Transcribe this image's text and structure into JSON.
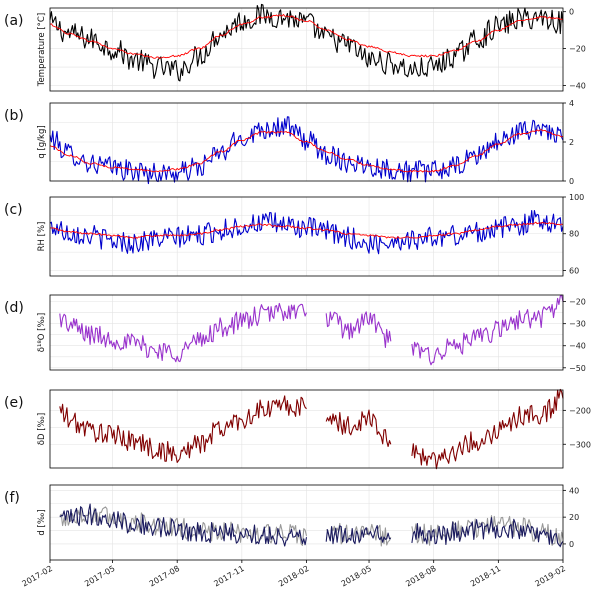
{
  "chart_data": {
    "type": "line",
    "x_axis": {
      "start": "2017-02-01",
      "end": "2019-02-01",
      "tick_labels": [
        "2017-02",
        "2017-05",
        "2017-08",
        "2017-11",
        "2018-02",
        "2018-05",
        "2018-08",
        "2018-11",
        "2019-02"
      ]
    },
    "panels": [
      {
        "id": "a",
        "label": "(a)",
        "ylabel": "Temperature [°C]",
        "ylim": [
          -43,
          2
        ],
        "yticks": [
          0,
          -20,
          -40
        ],
        "ytick_labels": [
          "0",
          "−20",
          "−40"
        ],
        "grid": true,
        "series": [
          {
            "color": "#000000",
            "style": "daily",
            "x": [
              "2017-02-01",
              "2017-03-01",
              "2017-04-01",
              "2017-05-01",
              "2017-06-01",
              "2017-07-01",
              "2017-08-01",
              "2017-09-01",
              "2017-10-01",
              "2017-11-01",
              "2017-12-01",
              "2018-01-01",
              "2018-02-01",
              "2018-03-01",
              "2018-04-01",
              "2018-05-01",
              "2018-06-01",
              "2018-07-01",
              "2018-08-01",
              "2018-09-01",
              "2018-10-01",
              "2018-11-01",
              "2018-12-01",
              "2019-01-01",
              "2019-02-01"
            ],
            "y": [
              -6,
              -12,
              -15,
              -20,
              -26,
              -30,
              -32,
              -24,
              -12,
              -5,
              -2,
              -3,
              -6,
              -14,
              -18,
              -26,
              -28,
              -32,
              -30,
              -24,
              -15,
              -8,
              -4,
              -3,
              -6
            ]
          },
          {
            "color": "#ff0000",
            "style": "smooth",
            "x": [
              "2017-02-01",
              "2017-03-01",
              "2017-04-01",
              "2017-05-01",
              "2017-06-01",
              "2017-07-01",
              "2017-08-01",
              "2017-09-01",
              "2017-10-01",
              "2017-11-01",
              "2017-12-01",
              "2018-01-01",
              "2018-02-01",
              "2018-03-01",
              "2018-04-01",
              "2018-05-01",
              "2018-06-01",
              "2018-07-01",
              "2018-08-01",
              "2018-09-01",
              "2018-10-01",
              "2018-11-01",
              "2018-12-01",
              "2019-01-01",
              "2019-02-01"
            ],
            "y": [
              -7,
              -12,
              -16,
              -20,
              -23,
              -25,
              -24,
              -20,
              -13,
              -7,
              -3,
              -2,
              -5,
              -10,
              -15,
              -19,
              -22,
              -24,
              -24,
              -21,
              -16,
              -10,
              -5,
              -3,
              -4
            ]
          }
        ]
      },
      {
        "id": "b",
        "label": "(b)",
        "ylabel": "q [g/kg]",
        "ylim": [
          0,
          4
        ],
        "yticks": [
          0,
          2,
          4
        ],
        "ytick_labels": [
          "0",
          "2",
          "4"
        ],
        "grid": true,
        "series": [
          {
            "color": "#0000cc",
            "style": "daily",
            "x": [
              "2017-02-01",
              "2017-03-01",
              "2017-04-01",
              "2017-05-01",
              "2017-06-01",
              "2017-07-01",
              "2017-08-01",
              "2017-09-01",
              "2017-10-01",
              "2017-11-01",
              "2017-12-01",
              "2018-01-01",
              "2018-02-01",
              "2018-03-01",
              "2018-04-01",
              "2018-05-01",
              "2018-06-01",
              "2018-07-01",
              "2018-08-01",
              "2018-09-01",
              "2018-10-01",
              "2018-11-01",
              "2018-12-01",
              "2019-01-01",
              "2019-02-01"
            ],
            "y": [
              2.2,
              1.4,
              0.9,
              0.7,
              0.5,
              0.4,
              0.4,
              0.7,
              1.4,
              2.2,
              2.7,
              2.8,
              2.1,
              1.4,
              1.0,
              0.8,
              0.6,
              0.5,
              0.5,
              0.7,
              1.3,
              2.0,
              2.5,
              2.8,
              2.1
            ]
          },
          {
            "color": "#ff0000",
            "style": "smooth",
            "x": [
              "2017-02-01",
              "2017-03-01",
              "2017-04-01",
              "2017-05-01",
              "2017-06-01",
              "2017-07-01",
              "2017-08-01",
              "2017-09-01",
              "2017-10-01",
              "2017-11-01",
              "2017-12-01",
              "2018-01-01",
              "2018-02-01",
              "2018-03-01",
              "2018-04-01",
              "2018-05-01",
              "2018-06-01",
              "2018-07-01",
              "2018-08-01",
              "2018-09-01",
              "2018-10-01",
              "2018-11-01",
              "2018-12-01",
              "2019-01-01",
              "2019-02-01"
            ],
            "y": [
              1.8,
              1.3,
              0.9,
              0.7,
              0.6,
              0.5,
              0.6,
              0.9,
              1.5,
              2.1,
              2.5,
              2.5,
              2.0,
              1.5,
              1.1,
              0.8,
              0.6,
              0.5,
              0.5,
              0.8,
              1.3,
              1.9,
              2.4,
              2.6,
              2.3
            ]
          }
        ]
      },
      {
        "id": "c",
        "label": "(c)",
        "ylabel": "RH [%]",
        "ylim": [
          57,
          100
        ],
        "yticks": [
          100,
          80,
          60
        ],
        "ytick_labels": [
          "100",
          "80",
          "60"
        ],
        "grid": true,
        "series": [
          {
            "color": "#0000cc",
            "style": "daily",
            "x": [
              "2017-02-01",
              "2017-03-01",
              "2017-04-01",
              "2017-05-01",
              "2017-06-01",
              "2017-07-01",
              "2017-08-01",
              "2017-09-01",
              "2017-10-01",
              "2017-11-01",
              "2017-12-01",
              "2018-01-01",
              "2018-02-01",
              "2018-03-01",
              "2018-04-01",
              "2018-05-01",
              "2018-06-01",
              "2018-07-01",
              "2018-08-01",
              "2018-09-01",
              "2018-10-01",
              "2018-11-01",
              "2018-12-01",
              "2019-01-01",
              "2019-02-01"
            ],
            "y": [
              84,
              81,
              79,
              76,
              75,
              77,
              78,
              79,
              82,
              84,
              86,
              85,
              83,
              81,
              78,
              74,
              76,
              77,
              78,
              79,
              81,
              83,
              85,
              88,
              84
            ]
          },
          {
            "color": "#ff0000",
            "style": "smooth",
            "x": [
              "2017-02-01",
              "2017-03-01",
              "2017-04-01",
              "2017-05-01",
              "2017-06-01",
              "2017-07-01",
              "2017-08-01",
              "2017-09-01",
              "2017-10-01",
              "2017-11-01",
              "2017-12-01",
              "2018-01-01",
              "2018-02-01",
              "2018-03-01",
              "2018-04-01",
              "2018-05-01",
              "2018-06-01",
              "2018-07-01",
              "2018-08-01",
              "2018-09-01",
              "2018-10-01",
              "2018-11-01",
              "2018-12-01",
              "2019-01-01",
              "2019-02-01"
            ],
            "y": [
              83,
              81,
              80,
              79,
              78,
              79,
              79,
              80,
              82,
              84,
              85,
              84,
              83,
              82,
              80,
              79,
              78,
              78,
              79,
              80,
              82,
              84,
              85,
              86,
              85
            ]
          }
        ]
      },
      {
        "id": "d",
        "label": "(d)",
        "ylabel": "δ¹⁸O [‰]",
        "ylim": [
          -51,
          -17
        ],
        "yticks": [
          -20,
          -30,
          -40,
          -50
        ],
        "ytick_labels": [
          "−20",
          "−30",
          "−40",
          "−50"
        ],
        "grid": true,
        "series": [
          {
            "color": "#9933cc",
            "style": "daily",
            "x": [
              "2017-02-15",
              "2017-03-01",
              "2017-04-01",
              "2017-05-01",
              "2017-06-01",
              "2017-07-01",
              "2017-08-01",
              "2017-09-01",
              "2017-10-01",
              "2017-11-01",
              "2017-12-01",
              "2018-01-01",
              "2018-02-01",
              null,
              "2018-03-01",
              "2018-04-01",
              "2018-05-01",
              "2018-06-01",
              null,
              "2018-07-01",
              "2018-08-01",
              "2018-09-01",
              "2018-10-01",
              "2018-11-01",
              "2018-12-01",
              "2019-01-01",
              "2019-02-01"
            ],
            "y": [
              -27,
              -31,
              -35,
              -37,
              -39,
              -42,
              -43,
              -38,
              -32,
              -29,
              -26,
              -24,
              -25,
              null,
              -27,
              -33,
              -28,
              -38,
              null,
              -42,
              -44,
              -40,
              -37,
              -33,
              -28,
              -27,
              -20
            ]
          }
        ]
      },
      {
        "id": "e",
        "label": "(e)",
        "ylabel": "δD [‰]",
        "ylim": [
          -370,
          -140
        ],
        "yticks": [
          -200,
          -300
        ],
        "ytick_labels": [
          "−200",
          "−300"
        ],
        "grid": true,
        "series": [
          {
            "color": "#800000",
            "style": "daily",
            "x": [
              "2017-02-15",
              "2017-03-01",
              "2017-04-01",
              "2017-05-01",
              "2017-06-01",
              "2017-07-01",
              "2017-08-01",
              "2017-09-01",
              "2017-10-01",
              "2017-11-01",
              "2017-12-01",
              "2018-01-01",
              "2018-02-01",
              null,
              "2018-03-01",
              "2018-04-01",
              "2018-05-01",
              "2018-06-01",
              null,
              "2018-07-01",
              "2018-08-01",
              "2018-09-01",
              "2018-10-01",
              "2018-11-01",
              "2018-12-01",
              "2019-01-01",
              "2019-02-01"
            ],
            "y": [
              -200,
              -230,
              -260,
              -275,
              -290,
              -315,
              -330,
              -300,
              -255,
              -225,
              -200,
              -185,
              -195,
              null,
              -210,
              -250,
              -220,
              -300,
              null,
              -320,
              -345,
              -320,
              -290,
              -260,
              -220,
              -210,
              -165
            ]
          }
        ]
      },
      {
        "id": "f",
        "label": "(f)",
        "ylabel": "d [‰]",
        "ylim": [
          -12,
          44
        ],
        "yticks": [
          40,
          20,
          0
        ],
        "ytick_labels": [
          "40",
          "20",
          "0"
        ],
        "grid": true,
        "series": [
          {
            "color": "#999999",
            "style": "daily",
            "x": [
              "2017-02-15",
              "2017-03-01",
              "2017-04-01",
              "2017-05-01",
              "2017-06-01",
              "2017-07-01",
              "2017-08-01",
              "2017-09-01",
              "2017-10-01",
              "2017-11-01",
              "2017-12-01",
              "2018-01-01",
              "2018-02-01",
              null,
              "2018-03-01",
              "2018-04-01",
              "2018-05-01",
              "2018-06-01",
              null,
              "2018-07-01",
              "2018-08-01",
              "2018-09-01",
              "2018-10-01",
              "2018-11-01",
              "2018-12-01",
              "2019-01-01",
              "2019-02-01"
            ],
            "y": [
              18,
              20,
              22,
              20,
              16,
              14,
              12,
              10,
              9,
              8,
              8,
              7,
              6,
              null,
              9,
              7,
              8,
              5,
              null,
              9,
              6,
              10,
              12,
              14,
              13,
              8,
              4
            ]
          },
          {
            "color": "#1a1a5e",
            "style": "daily",
            "x": [
              "2017-02-15",
              "2017-03-01",
              "2017-04-01",
              "2017-05-01",
              "2017-06-01",
              "2017-07-01",
              "2017-08-01",
              "2017-09-01",
              "2017-10-01",
              "2017-11-01",
              "2017-12-01",
              "2018-01-01",
              "2018-02-01",
              null,
              "2018-03-01",
              "2018-04-01",
              "2018-05-01",
              "2018-06-01",
              null,
              "2018-07-01",
              "2018-08-01",
              "2018-09-01",
              "2018-10-01",
              "2018-11-01",
              "2018-12-01",
              "2019-01-01",
              "2019-02-01"
            ],
            "y": [
              17,
              19,
              22,
              19,
              15,
              13,
              11,
              9,
              8,
              7,
              7,
              6,
              5,
              null,
              8,
              6,
              7,
              4,
              null,
              8,
              5,
              9,
              11,
              12,
              11,
              6,
              2
            ]
          }
        ]
      }
    ]
  }
}
